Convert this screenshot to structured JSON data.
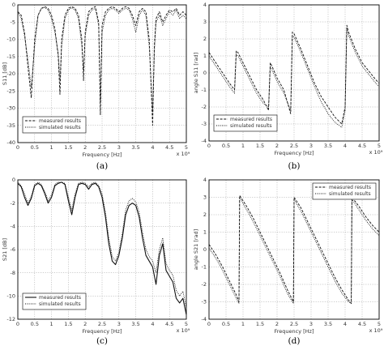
{
  "chart_data": [
    {
      "id": "a",
      "type": "line",
      "caption": "(a)",
      "xlabel": "Frequency [Hz]",
      "ylabel": "S11 [dB]",
      "xlim": [
        0,
        5
      ],
      "ylim": [
        -40,
        0
      ],
      "xticks": [
        "0",
        "0.5",
        "1",
        "1.5",
        "2",
        "2.5",
        "3",
        "3.5",
        "4",
        "4.5",
        "5"
      ],
      "yticks": [
        "0",
        "-5",
        "-10",
        "-15",
        "-20",
        "-25",
        "-30",
        "-35",
        "-40"
      ],
      "xexp": "x 10⁹",
      "legend": {
        "position": "bottom-left",
        "entries": [
          "measured results",
          "simulated results"
        ]
      },
      "series": [
        {
          "name": "measured results",
          "style": "dashed",
          "x": [
            0,
            0.1,
            0.2,
            0.3,
            0.4,
            0.5,
            0.6,
            0.7,
            0.8,
            0.9,
            1.0,
            1.1,
            1.2,
            1.25,
            1.3,
            1.4,
            1.5,
            1.6,
            1.7,
            1.8,
            1.9,
            1.95,
            2.0,
            2.1,
            2.2,
            2.3,
            2.4,
            2.45,
            2.5,
            2.6,
            2.7,
            2.8,
            2.9,
            3.0,
            3.1,
            3.2,
            3.3,
            3.4,
            3.5,
            3.6,
            3.7,
            3.8,
            3.9,
            4.0,
            4.05,
            4.1,
            4.2,
            4.3,
            4.4,
            4.5,
            4.6,
            4.7,
            4.8,
            4.9,
            5.0
          ],
          "y": [
            -2,
            -3,
            -8,
            -18,
            -27,
            -10,
            -3,
            -1,
            -0.5,
            -1,
            -3,
            -7,
            -15,
            -26,
            -10,
            -3,
            -1,
            -0.5,
            -1,
            -3,
            -10,
            -22,
            -8,
            -2,
            -1,
            -0.5,
            -5,
            -32,
            -6,
            -2,
            -1,
            -0.5,
            -1,
            -2,
            -1,
            -0.5,
            -1,
            -3,
            -6,
            -2,
            -1,
            -2,
            -10,
            -35,
            -12,
            -4,
            -2,
            -5,
            -3,
            -1.5,
            -2,
            -1,
            -3,
            -2,
            -3
          ]
        },
        {
          "name": "simulated results",
          "style": "dotted",
          "x": [
            0,
            0.1,
            0.2,
            0.3,
            0.4,
            0.5,
            0.6,
            0.7,
            0.8,
            0.9,
            1.0,
            1.1,
            1.2,
            1.25,
            1.3,
            1.4,
            1.5,
            1.6,
            1.7,
            1.8,
            1.9,
            1.95,
            2.0,
            2.1,
            2.2,
            2.3,
            2.4,
            2.45,
            2.5,
            2.6,
            2.7,
            2.8,
            2.9,
            3.0,
            3.1,
            3.2,
            3.3,
            3.4,
            3.5,
            3.6,
            3.7,
            3.8,
            3.9,
            4.0,
            4.05,
            4.1,
            4.2,
            4.3,
            4.4,
            4.5,
            4.6,
            4.7,
            4.8,
            4.9,
            5.0
          ],
          "y": [
            -2,
            -4,
            -9,
            -16,
            -24,
            -12,
            -3,
            -1,
            -0.8,
            -1.5,
            -4,
            -8,
            -14,
            -22,
            -12,
            -4,
            -1.5,
            -0.8,
            -1.5,
            -4,
            -12,
            -19,
            -9,
            -3,
            -1.5,
            -1,
            -6,
            -28,
            -8,
            -3,
            -1.5,
            -1,
            -1.5,
            -2.5,
            -1.5,
            -1,
            -1.5,
            -4,
            -8,
            -3,
            -1.5,
            -3,
            -12,
            -31,
            -14,
            -5,
            -3,
            -6,
            -4,
            -2,
            -3,
            -1.5,
            -4,
            -3,
            -4
          ]
        }
      ]
    },
    {
      "id": "b",
      "type": "line",
      "caption": "(b)",
      "xlabel": "Frequency [Hz]",
      "ylabel": "angle S11 [rad]",
      "xlim": [
        0,
        5
      ],
      "ylim": [
        -4,
        4
      ],
      "xticks": [
        "0",
        "0.5",
        "1",
        "1.5",
        "2",
        "2.5",
        "3",
        "3.5",
        "4",
        "4.5",
        "5"
      ],
      "yticks": [
        "4",
        "3",
        "2",
        "1",
        "0",
        "-1",
        "-2",
        "-3",
        "-4"
      ],
      "xexp": "x 10⁹",
      "legend": {
        "position": "bottom-left",
        "entries": [
          "measured results",
          "simulated results"
        ]
      },
      "series": [
        {
          "name": "measured results",
          "style": "dashed",
          "x": [
            0,
            0.2,
            0.4,
            0.6,
            0.75,
            0.8,
            0.85,
            1.0,
            1.2,
            1.4,
            1.6,
            1.75,
            1.8,
            1.85,
            2.0,
            2.2,
            2.4,
            2.45,
            2.5,
            2.7,
            2.9,
            3.1,
            3.3,
            3.5,
            3.7,
            3.9,
            4.0,
            4.05,
            4.1,
            4.3,
            4.5,
            4.7,
            4.9,
            5.0
          ],
          "y": [
            1.2,
            0.6,
            0.0,
            -0.6,
            -1.0,
            1.3,
            1.2,
            0.6,
            -0.2,
            -1.0,
            -1.6,
            -2.2,
            0.6,
            0.4,
            -0.3,
            -1.0,
            -2.4,
            2.4,
            2.3,
            1.4,
            0.4,
            -0.6,
            -1.4,
            -2.0,
            -2.6,
            -3.0,
            -2.0,
            2.8,
            2.4,
            1.4,
            0.6,
            0.1,
            -0.4,
            -0.6
          ]
        },
        {
          "name": "simulated results",
          "style": "dotted",
          "x": [
            0,
            0.2,
            0.4,
            0.6,
            0.75,
            0.8,
            0.85,
            1.0,
            1.2,
            1.4,
            1.6,
            1.75,
            1.8,
            1.85,
            2.0,
            2.2,
            2.4,
            2.45,
            2.5,
            2.7,
            2.9,
            3.1,
            3.3,
            3.5,
            3.7,
            3.9,
            4.0,
            4.05,
            4.1,
            4.3,
            4.5,
            4.7,
            4.9,
            5.0
          ],
          "y": [
            1.0,
            0.4,
            -0.2,
            -0.8,
            -1.2,
            1.1,
            1.0,
            0.4,
            -0.4,
            -1.2,
            -1.8,
            -2.0,
            0.4,
            0.2,
            -0.5,
            -1.2,
            -2.2,
            2.2,
            2.1,
            1.2,
            0.2,
            -0.8,
            -1.7,
            -2.4,
            -2.9,
            -3.2,
            -2.2,
            2.6,
            2.2,
            1.2,
            0.4,
            -0.1,
            -0.6,
            -0.8
          ]
        }
      ]
    },
    {
      "id": "c",
      "type": "line",
      "caption": "(c)",
      "xlabel": "Frequency [Hz]",
      "ylabel": "S21 [dB]",
      "xlim": [
        0,
        5
      ],
      "ylim": [
        -12,
        0
      ],
      "xticks": [
        "0",
        "0.5",
        "1",
        "1.5",
        "2",
        "2.5",
        "3",
        "3.5",
        "4",
        "4.5",
        "5"
      ],
      "yticks": [
        "0",
        "-2",
        "-4",
        "-6",
        "-8",
        "-10",
        "-12"
      ],
      "xexp": "x 10⁹",
      "legend": {
        "position": "bottom-left",
        "entries": [
          "measured results",
          "simulated results"
        ]
      },
      "series": [
        {
          "name": "measured results",
          "style": "solid",
          "x": [
            0,
            0.1,
            0.2,
            0.3,
            0.4,
            0.5,
            0.6,
            0.7,
            0.8,
            0.9,
            1.0,
            1.1,
            1.2,
            1.3,
            1.4,
            1.5,
            1.6,
            1.7,
            1.8,
            1.9,
            2.0,
            2.1,
            2.2,
            2.3,
            2.4,
            2.5,
            2.6,
            2.7,
            2.8,
            2.9,
            3.0,
            3.1,
            3.2,
            3.3,
            3.4,
            3.5,
            3.6,
            3.7,
            3.8,
            3.9,
            4.0,
            4.1,
            4.2,
            4.3,
            4.4,
            4.5,
            4.6,
            4.7,
            4.8,
            4.9,
            5.0
          ],
          "y": [
            -0.3,
            -0.6,
            -1.5,
            -2.2,
            -1.6,
            -0.5,
            -0.3,
            -0.5,
            -1.2,
            -2.0,
            -1.5,
            -0.5,
            -0.3,
            -0.2,
            -0.4,
            -1.8,
            -3.0,
            -1.5,
            -0.4,
            -0.3,
            -0.4,
            -0.8,
            -0.4,
            -0.3,
            -0.6,
            -1.5,
            -3.2,
            -5.5,
            -7.0,
            -7.3,
            -6.5,
            -5.0,
            -3.0,
            -2.2,
            -2.0,
            -2.2,
            -3.2,
            -5.0,
            -6.5,
            -7.0,
            -7.5,
            -9.0,
            -6.5,
            -5.5,
            -7.8,
            -8.3,
            -8.8,
            -10.2,
            -10.6,
            -10.2,
            -11.6
          ]
        },
        {
          "name": "simulated results",
          "style": "dotted",
          "x": [
            0,
            0.1,
            0.2,
            0.3,
            0.4,
            0.5,
            0.6,
            0.7,
            0.8,
            0.9,
            1.0,
            1.1,
            1.2,
            1.3,
            1.4,
            1.5,
            1.6,
            1.7,
            1.8,
            1.9,
            2.0,
            2.1,
            2.2,
            2.3,
            2.4,
            2.5,
            2.6,
            2.7,
            2.8,
            2.9,
            3.0,
            3.1,
            3.2,
            3.3,
            3.4,
            3.5,
            3.6,
            3.7,
            3.8,
            3.9,
            4.0,
            4.1,
            4.2,
            4.3,
            4.4,
            4.5,
            4.6,
            4.7,
            4.8,
            4.9,
            5.0
          ],
          "y": [
            -0.2,
            -0.5,
            -1.2,
            -2.0,
            -1.4,
            -0.4,
            -0.2,
            -0.4,
            -1.0,
            -1.8,
            -1.3,
            -0.4,
            -0.2,
            -0.2,
            -0.3,
            -1.5,
            -2.6,
            -1.2,
            -0.3,
            -0.2,
            -0.3,
            -0.6,
            -0.3,
            -0.2,
            -0.5,
            -1.2,
            -2.8,
            -5.0,
            -6.6,
            -7.0,
            -6.2,
            -4.6,
            -2.6,
            -1.8,
            -1.6,
            -1.9,
            -2.8,
            -4.5,
            -6.0,
            -6.6,
            -7.0,
            -8.0,
            -6.0,
            -5.0,
            -7.2,
            -7.8,
            -8.2,
            -9.5,
            -10.0,
            -9.6,
            -11.0
          ]
        }
      ]
    },
    {
      "id": "d",
      "type": "line",
      "caption": "(d)",
      "xlabel": "Frequency [Hz]",
      "ylabel": "angle S21 [rad]",
      "xlim": [
        0,
        5
      ],
      "ylim": [
        -4,
        4
      ],
      "xticks": [
        "0",
        "0.5",
        "1",
        "1.5",
        "2",
        "2.5",
        "3",
        "3.5",
        "4",
        "4.5",
        "5"
      ],
      "yticks": [
        "4",
        "3",
        "2",
        "1",
        "0",
        "-1",
        "-2",
        "-3",
        "-4"
      ],
      "xexp": "x 10⁹",
      "legend": {
        "position": "top-right",
        "entries": [
          "measured results",
          "simulated results"
        ]
      },
      "series": [
        {
          "name": "measured results",
          "style": "dashed",
          "x": [
            0,
            0.2,
            0.4,
            0.6,
            0.8,
            0.88,
            0.9,
            1.1,
            1.3,
            1.5,
            1.7,
            1.9,
            2.1,
            2.3,
            2.48,
            2.5,
            2.7,
            2.9,
            3.1,
            3.3,
            3.5,
            3.7,
            3.9,
            4.1,
            4.18,
            4.2,
            4.4,
            4.6,
            4.8,
            5.0
          ],
          "y": [
            0.3,
            -0.3,
            -1.0,
            -1.8,
            -2.6,
            -3.0,
            3.1,
            2.5,
            1.8,
            1.0,
            0.2,
            -0.6,
            -1.4,
            -2.3,
            -3.0,
            3.0,
            2.4,
            1.6,
            0.8,
            0.0,
            -0.8,
            -1.6,
            -2.3,
            -2.9,
            -3.1,
            3.0,
            2.5,
            1.9,
            1.4,
            1.0
          ]
        },
        {
          "name": "simulated results",
          "style": "dotted",
          "x": [
            0,
            0.2,
            0.4,
            0.6,
            0.8,
            0.88,
            0.9,
            1.1,
            1.3,
            1.5,
            1.7,
            1.9,
            2.1,
            2.3,
            2.48,
            2.5,
            2.7,
            2.9,
            3.1,
            3.3,
            3.5,
            3.7,
            3.9,
            4.1,
            4.18,
            4.2,
            4.4,
            4.6,
            4.8,
            5.0
          ],
          "y": [
            0.1,
            -0.5,
            -1.2,
            -2.0,
            -2.8,
            -3.1,
            3.0,
            2.3,
            1.6,
            0.8,
            0.0,
            -0.8,
            -1.6,
            -2.5,
            -3.1,
            2.9,
            2.2,
            1.4,
            0.6,
            -0.2,
            -1.0,
            -1.8,
            -2.5,
            -3.0,
            -3.1,
            2.9,
            2.3,
            1.7,
            1.2,
            0.8
          ]
        }
      ]
    }
  ]
}
